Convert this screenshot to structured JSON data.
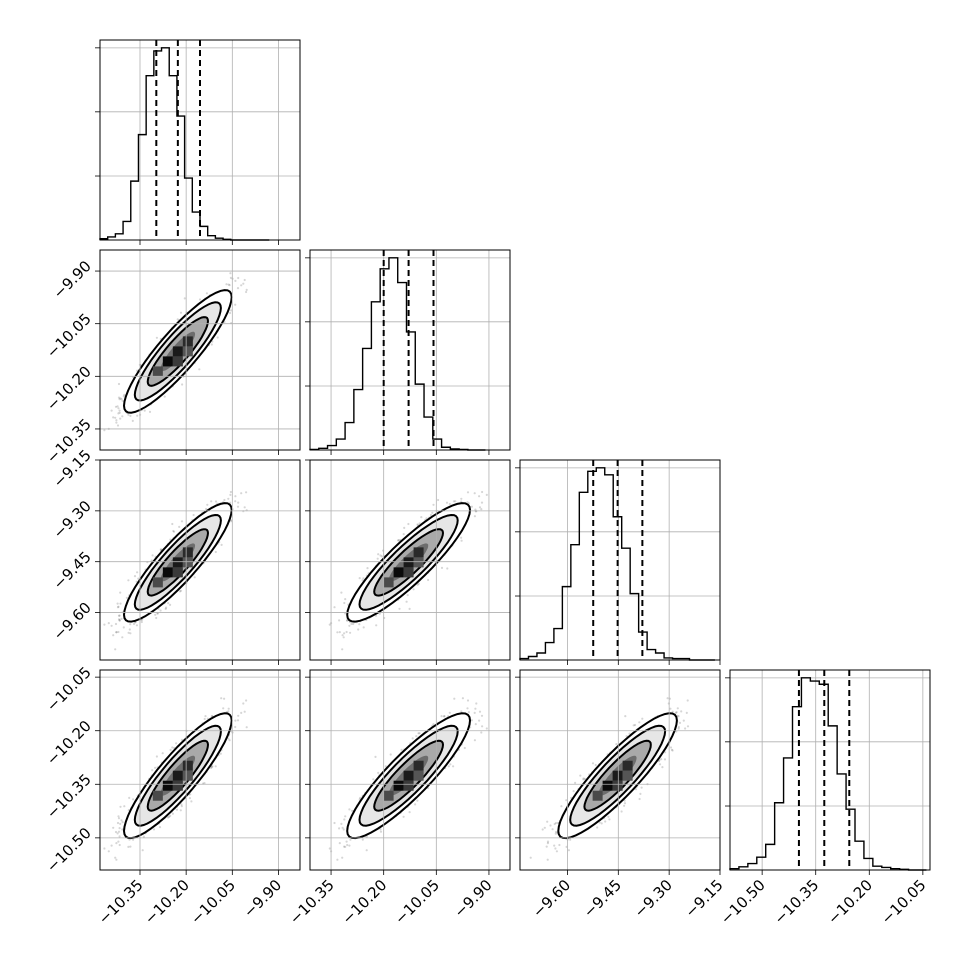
{
  "chart_data": {
    "type": "corner",
    "parameters": 4,
    "grid": true,
    "color": "#000000",
    "contour_fills": [
      "#ffffff",
      "#e6e6e6",
      "#a9a9a9",
      "#6d6d6d"
    ],
    "quantile_line_style": "dashed",
    "panel_ranges": [
      [
        -10.48,
        -9.83
      ],
      [
        -10.41,
        -9.84
      ],
      [
        -9.74,
        -9.15
      ],
      [
        -10.59,
        -10.03
      ]
    ],
    "marginals": [
      {
        "mean": -10.227,
        "sd": 0.07,
        "quantiles": [
          -10.297,
          -10.227,
          -10.155
        ],
        "bin_edges": [
          -10.48,
          -10.455,
          -10.43,
          -10.405,
          -10.38,
          -10.355,
          -10.33,
          -10.305,
          -10.28,
          -10.255,
          -10.23,
          -10.205,
          -10.18,
          -10.155,
          -10.13,
          -10.105,
          -10.08,
          -10.055,
          -10.03,
          -10.005,
          -9.98,
          -9.955,
          -9.93
        ],
        "counts": [
          2,
          5,
          10,
          30,
          95,
          170,
          265,
          305,
          310,
          265,
          200,
          100,
          45,
          22,
          7,
          3,
          1,
          0,
          0,
          0,
          0,
          0
        ]
      },
      {
        "mean": -10.129,
        "sd": 0.07,
        "quantiles": [
          -10.2,
          -10.129,
          -10.058
        ],
        "bin_edges": [
          -10.41,
          -10.385,
          -10.36,
          -10.335,
          -10.31,
          -10.285,
          -10.26,
          -10.235,
          -10.21,
          -10.185,
          -10.16,
          -10.135,
          -10.11,
          -10.085,
          -10.06,
          -10.035,
          -10.01,
          -9.985,
          -9.96,
          -9.935,
          -9.91
        ],
        "counts": [
          1,
          3,
          8,
          20,
          50,
          110,
          185,
          270,
          330,
          350,
          305,
          215,
          120,
          60,
          20,
          5,
          2,
          1,
          0,
          0
        ]
      },
      {
        "mean": -9.452,
        "sd": 0.07,
        "quantiles": [
          -9.524,
          -9.452,
          -9.379
        ],
        "bin_edges": [
          -9.74,
          -9.715,
          -9.69,
          -9.665,
          -9.64,
          -9.615,
          -9.59,
          -9.565,
          -9.54,
          -9.515,
          -9.49,
          -9.465,
          -9.44,
          -9.415,
          -9.39,
          -9.365,
          -9.34,
          -9.315,
          -9.29,
          -9.265,
          -9.24,
          -9.215,
          -9.19,
          -9.165
        ],
        "counts": [
          2,
          5,
          10,
          25,
          45,
          105,
          165,
          240,
          270,
          275,
          265,
          205,
          160,
          95,
          40,
          15,
          10,
          3,
          2,
          2,
          0,
          0,
          0
        ]
      },
      {
        "mean": -10.326,
        "sd": 0.07,
        "quantiles": [
          -10.397,
          -10.326,
          -10.256
        ],
        "bin_edges": [
          -10.59,
          -10.565,
          -10.54,
          -10.515,
          -10.49,
          -10.465,
          -10.44,
          -10.415,
          -10.39,
          -10.365,
          -10.34,
          -10.315,
          -10.29,
          -10.265,
          -10.24,
          -10.215,
          -10.19,
          -10.165,
          -10.14,
          -10.115,
          -10.09,
          -10.065,
          -10.04
        ],
        "counts": [
          2,
          5,
          10,
          20,
          40,
          105,
          175,
          255,
          300,
          295,
          290,
          225,
          150,
          95,
          45,
          18,
          6,
          4,
          2,
          1,
          0,
          0
        ]
      }
    ],
    "pairs": [
      {
        "x_param": 0,
        "y_param": 1,
        "correlation": 0.88
      },
      {
        "x_param": 0,
        "y_param": 2,
        "correlation": 0.88
      },
      {
        "x_param": 1,
        "y_param": 2,
        "correlation": 0.88
      },
      {
        "x_param": 0,
        "y_param": 3,
        "correlation": 0.88
      },
      {
        "x_param": 1,
        "y_param": 3,
        "correlation": 0.88
      },
      {
        "x_param": 2,
        "y_param": 3,
        "correlation": 0.88
      }
    ],
    "x_ticks": [
      [
        "−10.35",
        "−10.20",
        "−10.05",
        "−9.90"
      ],
      [
        "−10.35",
        "−10.20",
        "−10.05",
        "−9.90"
      ],
      [
        "−9.60",
        "−9.45",
        "−9.30",
        "−9.15"
      ],
      [
        "−10.50",
        "−10.35",
        "−10.20",
        "−10.05"
      ]
    ],
    "y_ticks": [
      [],
      [
        "−9.90",
        "−10.05",
        "−10.20",
        "−10.35"
      ],
      [
        "−9.15",
        "−9.30",
        "−9.45",
        "−9.60"
      ],
      [
        "−10.05",
        "−10.20",
        "−10.35",
        "−10.50"
      ]
    ]
  }
}
